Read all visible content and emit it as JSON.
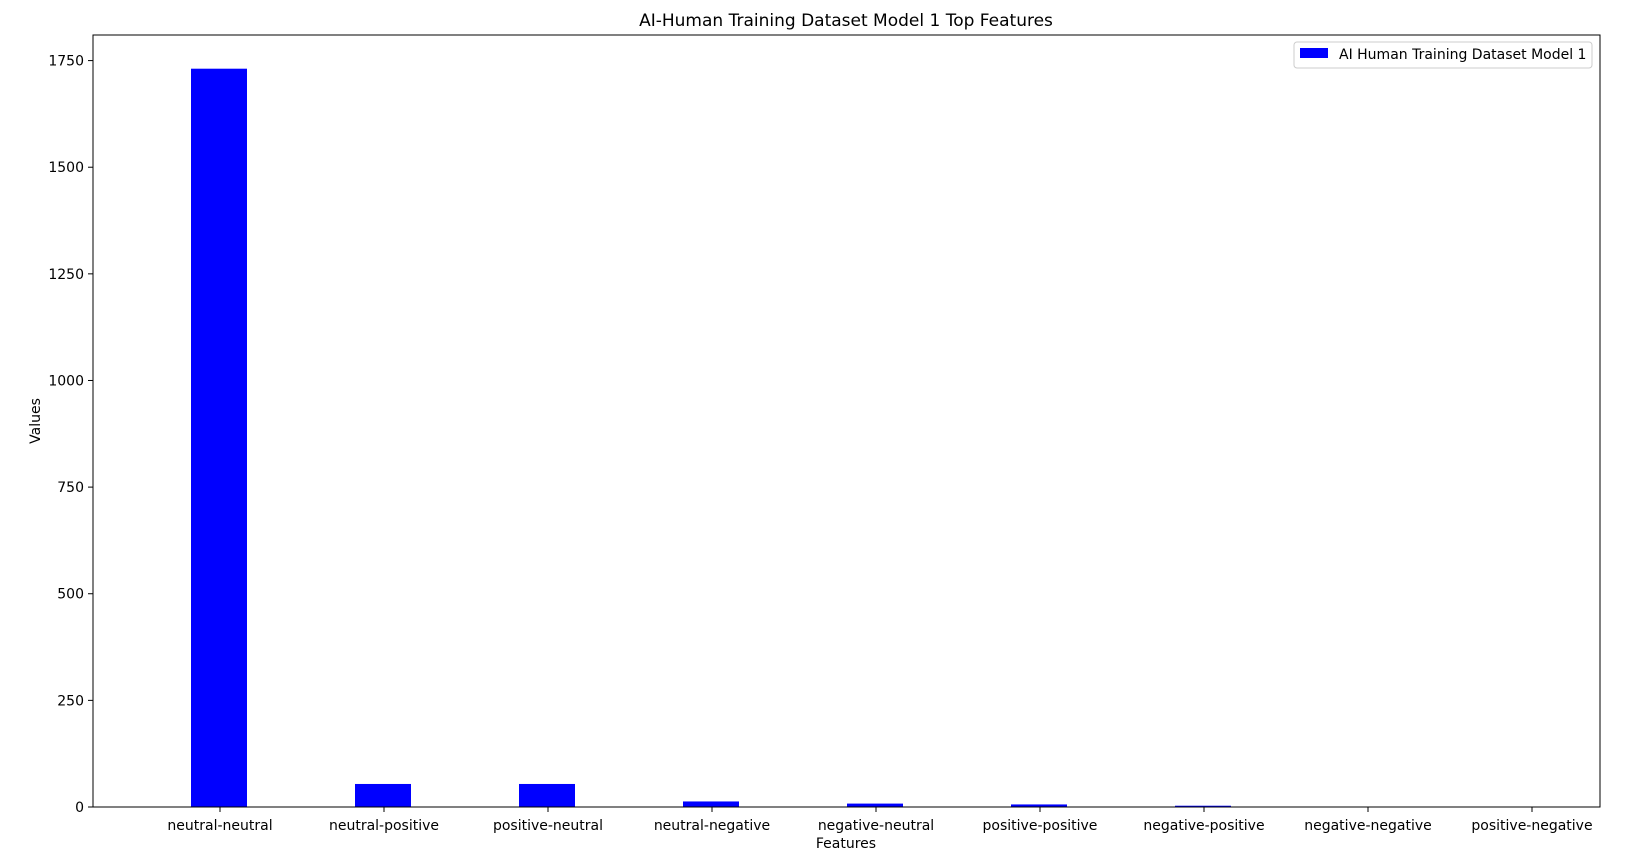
{
  "chart_data": {
    "type": "bar",
    "title": "AI-Human Training Dataset Model 1 Top Features",
    "xlabel": "Features",
    "ylabel": "Values",
    "categories": [
      "neutral-neutral",
      "neutral-positive",
      "positive-neutral",
      "neutral-negative",
      "negative-neutral",
      "positive-positive",
      "negative-positive",
      "negative-negative",
      "positive-negative"
    ],
    "series": [
      {
        "name": "AI Human Training Dataset Model 1",
        "color": "#0000ff",
        "values": [
          1731,
          54,
          54,
          13,
          8,
          6,
          3,
          1,
          1
        ]
      }
    ],
    "ylim": [
      0,
      1810
    ],
    "yticks": [
      0,
      250,
      500,
      750,
      1000,
      1250,
      1500,
      1750
    ],
    "legend_position": "top-right",
    "grid": false
  }
}
